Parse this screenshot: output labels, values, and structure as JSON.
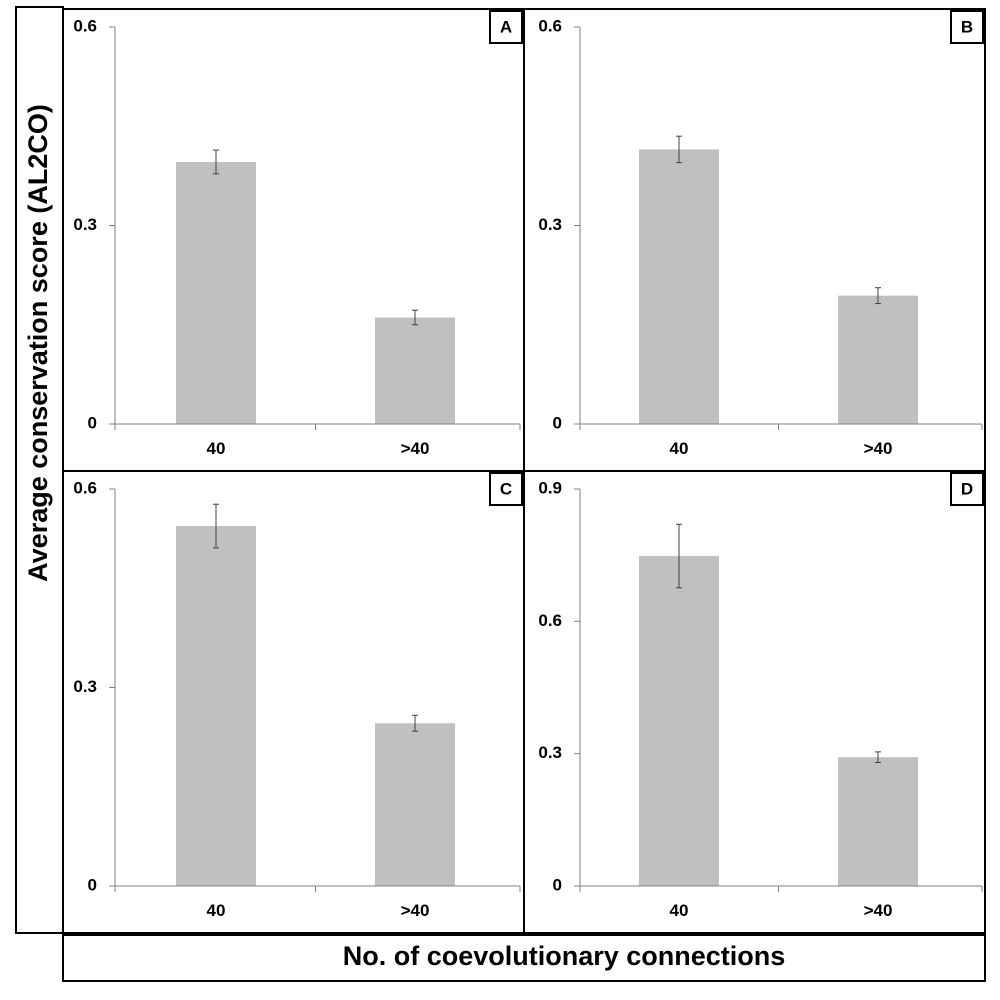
{
  "figure": {
    "ylabel": "Average conservation score (AL2CO)",
    "xlabel": "No. of coevolutionary connections"
  },
  "colors": {
    "bar": "#c0c0c0",
    "axis": "#808080",
    "frame": "#000000",
    "error_bar": "#404040"
  },
  "chart_data": [
    {
      "type": "bar",
      "panel": "A",
      "categories": [
        "40",
        ">40"
      ],
      "values": [
        0.396,
        0.161
      ],
      "errors": [
        0.018,
        0.011
      ],
      "yticks": [
        "0",
        "0.3",
        "0.6"
      ],
      "ylim": [
        0,
        0.6
      ],
      "xlabel": "",
      "ylabel": ""
    },
    {
      "type": "bar",
      "panel": "B",
      "categories": [
        "40",
        ">40"
      ],
      "values": [
        0.415,
        0.194
      ],
      "errors": [
        0.02,
        0.012
      ],
      "yticks": [
        "0",
        "0.3",
        "0.6"
      ],
      "ylim": [
        0,
        0.6
      ],
      "xlabel": "",
      "ylabel": ""
    },
    {
      "type": "bar",
      "panel": "C",
      "categories": [
        "40",
        ">40"
      ],
      "values": [
        0.544,
        0.246
      ],
      "errors": [
        0.033,
        0.012
      ],
      "yticks": [
        "0",
        "0.3",
        "0.6"
      ],
      "ylim": [
        0,
        0.6
      ],
      "xlabel": "",
      "ylabel": ""
    },
    {
      "type": "bar",
      "panel": "D",
      "categories": [
        "40",
        ">40"
      ],
      "values": [
        0.748,
        0.292
      ],
      "errors": [
        0.072,
        0.012
      ],
      "yticks": [
        "0",
        "0.3",
        "0.6",
        "0.9"
      ],
      "ylim": [
        0,
        0.9
      ],
      "xlabel": "",
      "ylabel": ""
    }
  ]
}
